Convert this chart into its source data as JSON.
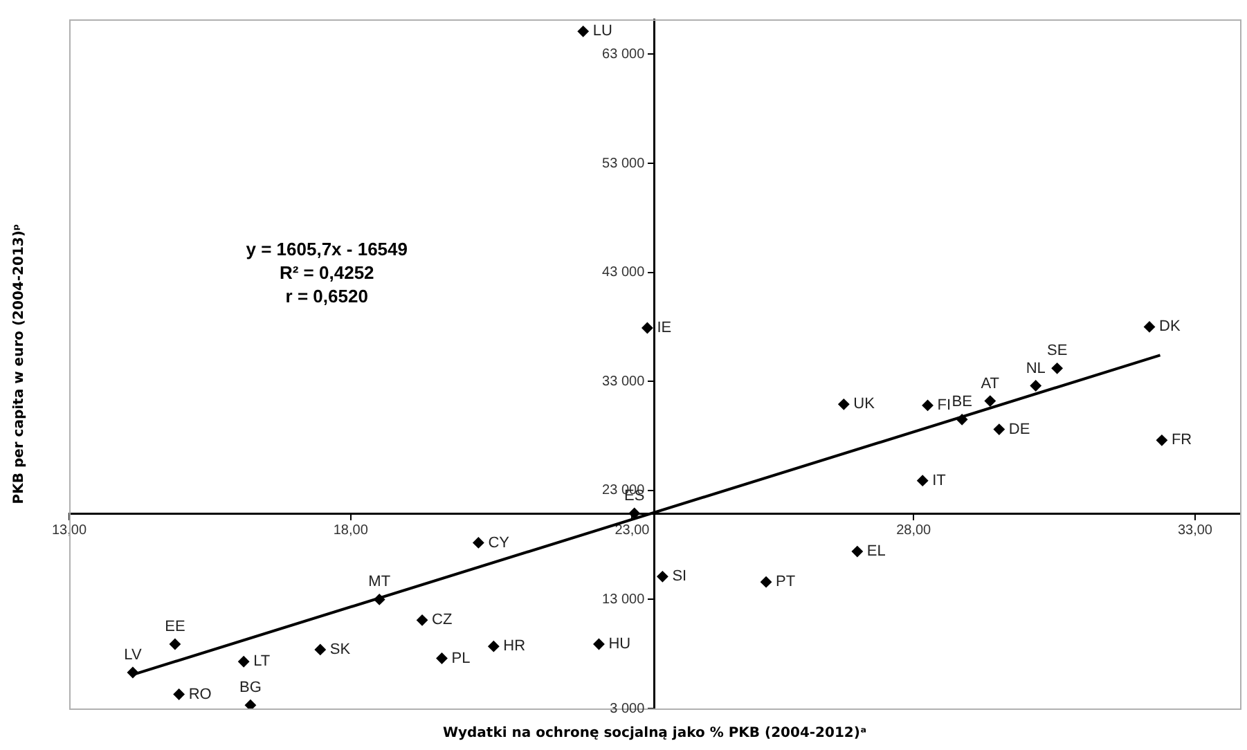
{
  "chart_data": {
    "type": "scatter",
    "xlabel": "Wydatki na ochronę socjalną jako % PKB (2004-2012)ᵃ",
    "ylabel": "PKB per capita w euro (2004-2013)ᵖ",
    "xlim": [
      13,
      33.8
    ],
    "ylim": [
      3000,
      66200
    ],
    "xticks": [
      {
        "value": 13,
        "label": "13,00"
      },
      {
        "value": 18,
        "label": "18,00"
      },
      {
        "value": 23,
        "label": "23,00"
      },
      {
        "value": 28,
        "label": "28,00"
      },
      {
        "value": 33,
        "label": "33,00"
      }
    ],
    "yticks": [
      {
        "value": 3000,
        "label": "3 000"
      },
      {
        "value": 13000,
        "label": "13 000"
      },
      {
        "value": 23000,
        "label": "23 000"
      },
      {
        "value": 33000,
        "label": "33 000"
      },
      {
        "value": 43000,
        "label": "43 000"
      },
      {
        "value": 53000,
        "label": "53 000"
      },
      {
        "value": 63000,
        "label": "63 000"
      }
    ],
    "legend": false,
    "grid": false,
    "series": [
      {
        "color": "#000000",
        "marker": "diamond",
        "x": [
          14.13,
          14.88,
          14.95,
          16.1,
          16.22,
          17.46,
          18.51,
          19.27,
          20.27,
          19.62,
          20.54,
          22.41,
          23.04,
          23.54,
          25.38,
          27.0,
          28.16,
          22.13,
          23.27,
          26.76,
          28.25,
          28.86,
          29.36,
          29.52,
          30.17,
          30.55,
          32.19,
          32.41
        ],
        "values": [
          6300,
          8900,
          4300,
          7300,
          3300,
          8400,
          13000,
          11100,
          18200,
          7600,
          8700,
          8900,
          20900,
          15100,
          14600,
          17400,
          23900,
          65100,
          37900,
          30900,
          30800,
          29500,
          31200,
          28600,
          32600,
          34200,
          38000,
          27600
        ]
      },
      {
        "type": "line",
        "color": "#000000",
        "marker": "none",
        "x": [
          14.13,
          32.38
        ],
        "values": [
          6100,
          35400
        ]
      }
    ],
    "annotations": [
      "y = 1605,7x - 16549",
      "R² = 0,4252",
      "r = 0,6520",
      {
        "text": "LV",
        "x": 14.13,
        "y": 6300
      },
      {
        "text": "EE",
        "x": 14.88,
        "y": 8900
      },
      {
        "text": "RO",
        "x": 14.95,
        "y": 4300
      },
      {
        "text": "LT",
        "x": 16.1,
        "y": 7300
      },
      {
        "text": "BG",
        "x": 16.22,
        "y": 3300
      },
      {
        "text": "SK",
        "x": 17.46,
        "y": 8400
      },
      {
        "text": "MT",
        "x": 18.51,
        "y": 13000
      },
      {
        "text": "CZ",
        "x": 19.27,
        "y": 11100
      },
      {
        "text": "CY",
        "x": 20.27,
        "y": 18200
      },
      {
        "text": "PL",
        "x": 19.62,
        "y": 7600
      },
      {
        "text": "HR",
        "x": 20.54,
        "y": 8700
      },
      {
        "text": "HU",
        "x": 22.41,
        "y": 8900
      },
      {
        "text": "ES",
        "x": 23.04,
        "y": 20900
      },
      {
        "text": "SI",
        "x": 23.54,
        "y": 15100
      },
      {
        "text": "PT",
        "x": 25.38,
        "y": 14600
      },
      {
        "text": "EL",
        "x": 27.0,
        "y": 17400
      },
      {
        "text": "IT",
        "x": 28.16,
        "y": 23900
      },
      {
        "text": "LU",
        "x": 22.13,
        "y": 65100
      },
      {
        "text": "IE",
        "x": 23.27,
        "y": 37900
      },
      {
        "text": "UK",
        "x": 26.76,
        "y": 30900
      },
      {
        "text": "FI",
        "x": 28.25,
        "y": 30800
      },
      {
        "text": "BE",
        "x": 28.86,
        "y": 29500
      },
      {
        "text": "AT",
        "x": 29.36,
        "y": 31200
      },
      {
        "text": "DE",
        "x": 29.52,
        "y": 28600
      },
      {
        "text": "NL",
        "x": 30.17,
        "y": 32600
      },
      {
        "text": "SE",
        "x": 30.55,
        "y": 34200
      },
      {
        "text": "DK",
        "x": 32.19,
        "y": 38000
      },
      {
        "text": "FR",
        "x": 32.41,
        "y": 27600
      }
    ]
  }
}
